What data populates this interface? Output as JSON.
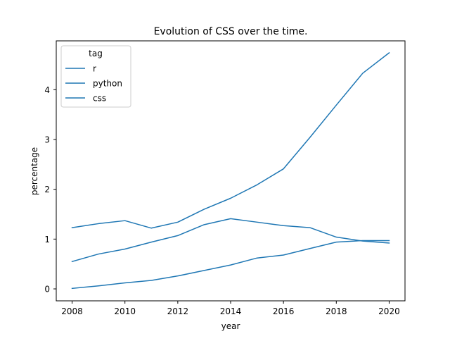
{
  "chart_data": {
    "type": "line",
    "title": "Evolution of CSS over the time.",
    "xlabel": "year",
    "ylabel": "percentage",
    "x": [
      2008,
      2009,
      2010,
      2011,
      2012,
      2013,
      2014,
      2015,
      2016,
      2017,
      2018,
      2019,
      2020
    ],
    "xlim": [
      2007.4,
      2020.6
    ],
    "ylim": [
      -0.24,
      4.98
    ],
    "xticks": [
      2008,
      2010,
      2012,
      2014,
      2016,
      2018,
      2020
    ],
    "yticks": [
      0,
      1,
      2,
      3,
      4
    ],
    "grid": false,
    "legend": {
      "title": "tag",
      "placement": "top-left"
    },
    "series": [
      {
        "name": "r",
        "values": [
          0.01,
          0.06,
          0.12,
          0.17,
          0.26,
          0.37,
          0.48,
          0.62,
          0.68,
          0.81,
          0.94,
          0.97,
          0.97
        ]
      },
      {
        "name": "python",
        "values": [
          0.55,
          0.7,
          0.8,
          0.94,
          1.07,
          1.29,
          1.41,
          1.34,
          1.27,
          1.23,
          1.04,
          0.96,
          0.92
        ]
      },
      {
        "name": "css",
        "values": [
          1.23,
          1.31,
          1.37,
          1.22,
          1.34,
          1.6,
          1.82,
          2.09,
          2.41,
          3.04,
          3.69,
          4.33,
          4.74
        ]
      }
    ],
    "line_color": "#1f77b4"
  }
}
